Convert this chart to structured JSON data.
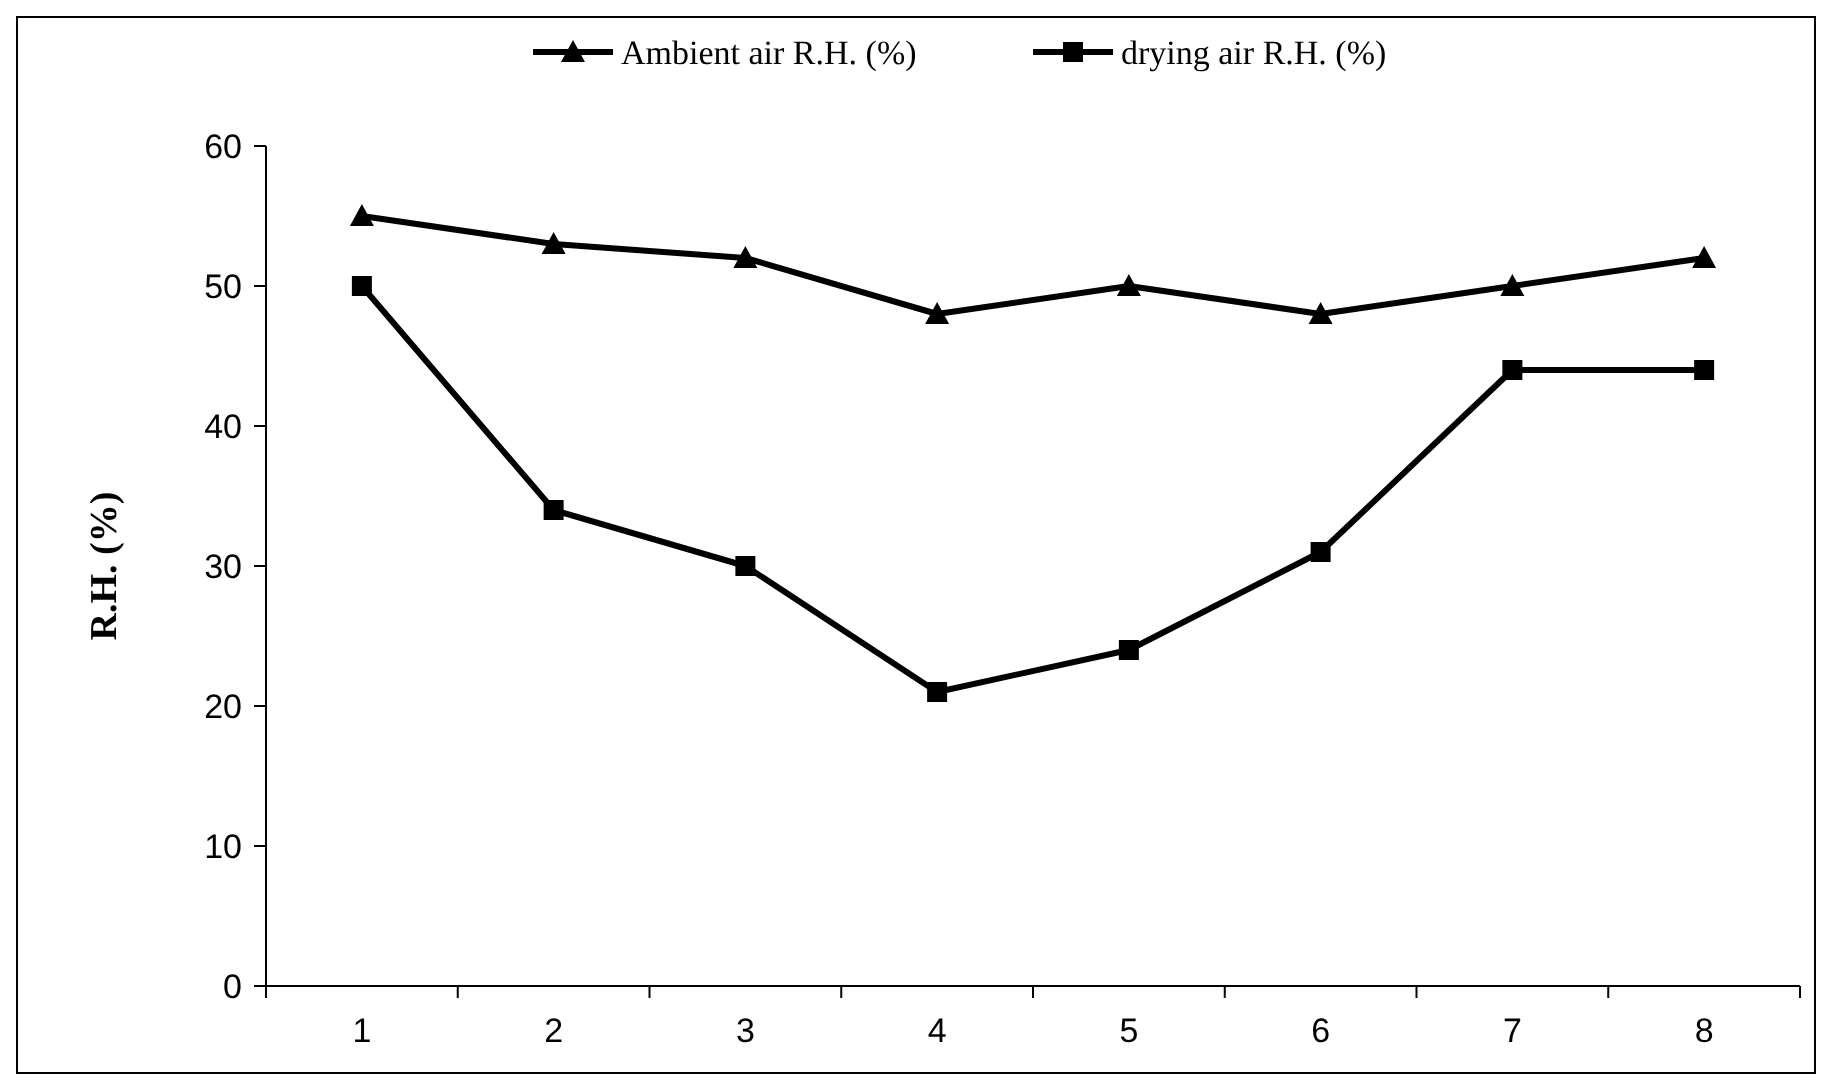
{
  "chart_data": {
    "type": "line",
    "ylabel": "R.H. (%)",
    "categories": [
      "1",
      "2",
      "3",
      "4",
      "5",
      "6",
      "7",
      "8"
    ],
    "ylim": [
      0,
      60
    ],
    "yticks": [
      0,
      10,
      20,
      30,
      40,
      50,
      60
    ],
    "legend": "top",
    "line_style": "solid",
    "series": [
      {
        "name": "Ambient air R.H. (%)",
        "color": "#000000",
        "marker": "triangle",
        "values": [
          55,
          53,
          52,
          48,
          50,
          48,
          50,
          52
        ]
      },
      {
        "name": "drying air R.H. (%)",
        "color": "#000000",
        "marker": "square",
        "values": [
          50,
          34,
          30,
          21,
          24,
          31,
          44,
          44
        ]
      }
    ]
  }
}
